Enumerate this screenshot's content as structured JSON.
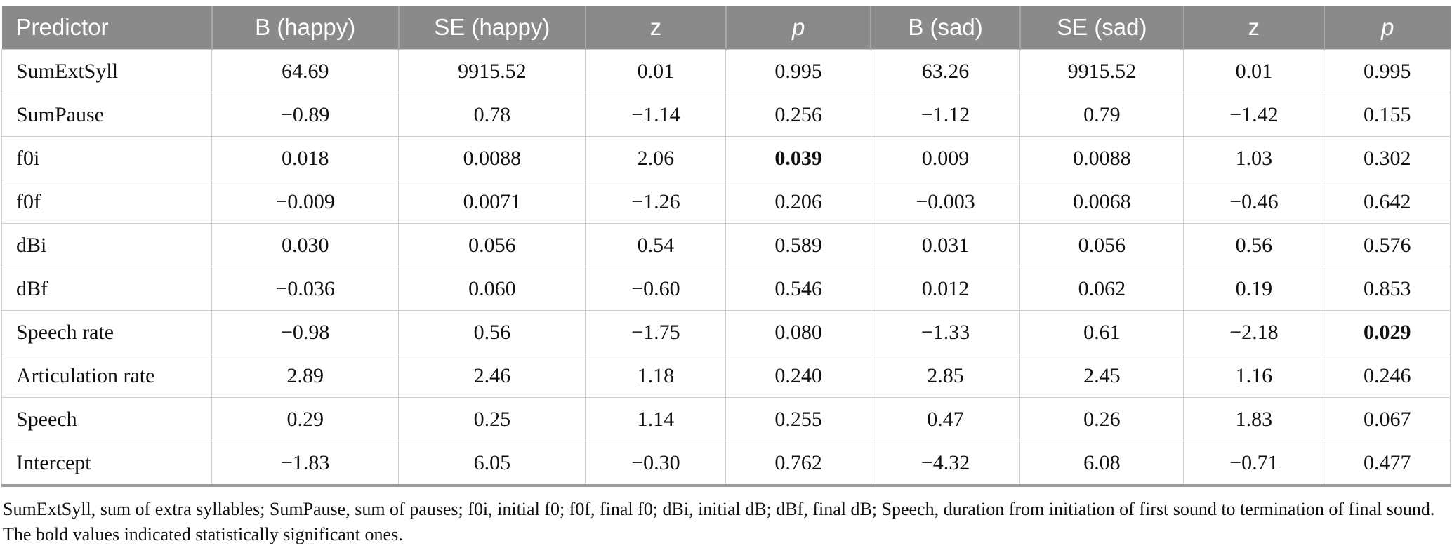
{
  "table": {
    "columns": [
      {
        "label": "Predictor",
        "italic": false
      },
      {
        "label": "B (happy)",
        "italic": false
      },
      {
        "label": "SE (happy)",
        "italic": false
      },
      {
        "label": "z",
        "italic": false
      },
      {
        "label": "p",
        "italic": true
      },
      {
        "label": "B (sad)",
        "italic": false
      },
      {
        "label": "SE (sad)",
        "italic": false
      },
      {
        "label": "z",
        "italic": false
      },
      {
        "label": "p",
        "italic": true
      }
    ],
    "rows": [
      {
        "predictor": "SumExtSyll",
        "values": [
          "64.69",
          "9915.52",
          "0.01",
          "0.995",
          "63.26",
          "9915.52",
          "0.01",
          "0.995"
        ],
        "bold": []
      },
      {
        "predictor": "SumPause",
        "values": [
          "−0.89",
          "0.78",
          "−1.14",
          "0.256",
          "−1.12",
          "0.79",
          "−1.42",
          "0.155"
        ],
        "bold": []
      },
      {
        "predictor": "f0i",
        "values": [
          "0.018",
          "0.0088",
          "2.06",
          "0.039",
          "0.009",
          "0.0088",
          "1.03",
          "0.302"
        ],
        "bold": [
          3
        ]
      },
      {
        "predictor": "f0f",
        "values": [
          "−0.009",
          "0.0071",
          "−1.26",
          "0.206",
          "−0.003",
          "0.0068",
          "−0.46",
          "0.642"
        ],
        "bold": []
      },
      {
        "predictor": "dBi",
        "values": [
          "0.030",
          "0.056",
          "0.54",
          "0.589",
          "0.031",
          "0.056",
          "0.56",
          "0.576"
        ],
        "bold": []
      },
      {
        "predictor": "dBf",
        "values": [
          "−0.036",
          "0.060",
          "−0.60",
          "0.546",
          "0.012",
          "0.062",
          "0.19",
          "0.853"
        ],
        "bold": []
      },
      {
        "predictor": "Speech rate",
        "values": [
          "−0.98",
          "0.56",
          "−1.75",
          "0.080",
          "−1.33",
          "0.61",
          "−2.18",
          "0.029"
        ],
        "bold": [
          7
        ]
      },
      {
        "predictor": "Articulation rate",
        "values": [
          "2.89",
          "2.46",
          "1.18",
          "0.240",
          "2.85",
          "2.45",
          "1.16",
          "0.246"
        ],
        "bold": []
      },
      {
        "predictor": "Speech",
        "values": [
          "0.29",
          "0.25",
          "1.14",
          "0.255",
          "0.47",
          "0.26",
          "1.83",
          "0.067"
        ],
        "bold": []
      },
      {
        "predictor": "Intercept",
        "values": [
          "−1.83",
          "6.05",
          "−0.30",
          "0.762",
          "−4.32",
          "6.08",
          "−0.71",
          "0.477"
        ],
        "bold": []
      }
    ]
  },
  "footnote": "SumExtSyll, sum of extra syllables; SumPause, sum of pauses; f0i, initial f0; f0f, final f0; dBi, initial dB; dBf, final dB; Speech, duration from initiation of first sound to termination of final sound. The bold values indicated statistically significant ones.",
  "colors": {
    "header_bg": "#8a8a8a",
    "header_text": "#ffffff",
    "body_border": "#cccccc",
    "bottom_rule": "#9b9b9b",
    "text": "#111111"
  }
}
